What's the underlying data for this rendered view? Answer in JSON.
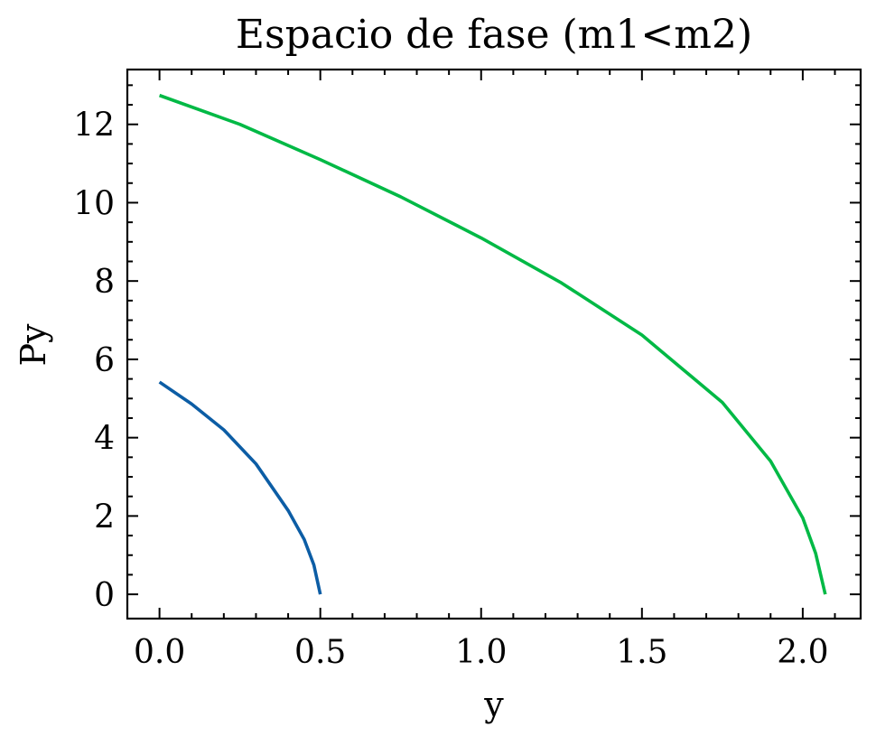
{
  "chart_data": {
    "type": "line",
    "title": "Espacio de fase (m1<m2)",
    "xlabel": "y",
    "ylabel": "Py",
    "xlim": [
      -0.1,
      2.18
    ],
    "ylim": [
      -0.62,
      13.4
    ],
    "x_ticks": [
      0.0,
      0.5,
      1.0,
      1.5,
      2.0
    ],
    "x_tick_labels": [
      "0.0",
      "0.5",
      "1.0",
      "1.5",
      "2.0"
    ],
    "y_ticks": [
      0,
      2,
      4,
      6,
      8,
      10,
      12
    ],
    "y_tick_labels": [
      "0",
      "2",
      "4",
      "6",
      "8",
      "10",
      "12"
    ],
    "grid": false,
    "series": [
      {
        "color": "#0C5DA5",
        "x": [
          0.0,
          0.1,
          0.2,
          0.3,
          0.4,
          0.45,
          0.48,
          0.5
        ],
        "y": [
          5.42,
          4.86,
          4.2,
          3.33,
          2.14,
          1.4,
          0.75,
          0.0
        ]
      },
      {
        "color": "#00B945",
        "x": [
          0.0,
          0.25,
          0.5,
          0.75,
          1.0,
          1.25,
          1.5,
          1.75,
          1.9,
          2.0,
          2.04,
          2.07
        ],
        "y": [
          12.74,
          12.0,
          11.1,
          10.15,
          9.1,
          7.95,
          6.62,
          4.9,
          3.4,
          1.95,
          1.05,
          0.0
        ]
      }
    ]
  }
}
